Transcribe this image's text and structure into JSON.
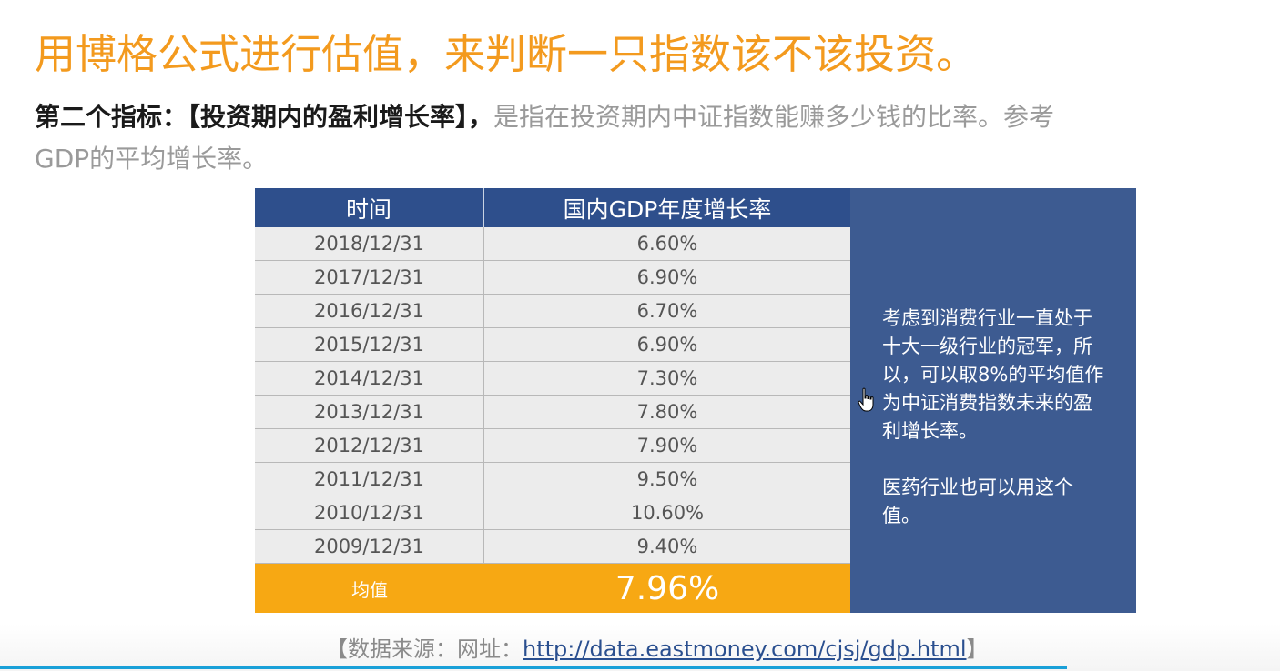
{
  "title": "用博格公式进行估值，来判断一只指数该不该投资。",
  "subtitle": {
    "strong": "第二个指标：【投资期内的盈利增长率】，",
    "light": "是指在投资期内中证指数能赚多少钱的比率。参考",
    "line2": "GDP的平均增长率。"
  },
  "table": {
    "headers": [
      "时间",
      "国内GDP年度增长率"
    ],
    "rows": [
      {
        "date": "2018/12/31",
        "rate": "6.60%"
      },
      {
        "date": "2017/12/31",
        "rate": "6.90%"
      },
      {
        "date": "2016/12/31",
        "rate": "6.70%"
      },
      {
        "date": "2015/12/31",
        "rate": "6.90%"
      },
      {
        "date": "2014/12/31",
        "rate": "7.30%"
      },
      {
        "date": "2013/12/31",
        "rate": "7.80%"
      },
      {
        "date": "2012/12/31",
        "rate": "7.90%"
      },
      {
        "date": "2011/12/31",
        "rate": "9.50%"
      },
      {
        "date": "2010/12/31",
        "rate": "10.60%"
      },
      {
        "date": "2009/12/31",
        "rate": "9.40%"
      }
    ],
    "average_label": "均值",
    "average_value": "7.96%"
  },
  "side_note": {
    "p1": "考虑到消费行业一直处于十大一级行业的冠军，所以，可以取8%的平均值作为中证消费指数未来的盈利增长率。",
    "p2": "医药行业也可以用这个值。"
  },
  "source": {
    "prefix": "【数据来源：网址：",
    "link": "http://data.eastmoney.com/cjsj/gdp.html",
    "suffix": "】"
  },
  "colors": {
    "title": "#f39a1e",
    "header_blue": "#2e4f8c",
    "panel_blue": "#3d5b91",
    "average_orange": "#f7a813"
  },
  "icons": {
    "cursor": "hand-pointer-icon"
  }
}
